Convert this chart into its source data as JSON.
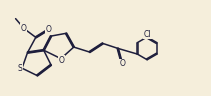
{
  "bg_color": "#f5eedb",
  "bond_color": "#1e1e3c",
  "atom_color": "#1e1e3c",
  "line_width": 1.1,
  "font_size": 5.5,
  "fig_width": 2.11,
  "fig_height": 0.96,
  "dpi": 100,
  "xlim": [
    -0.5,
    11.0
  ],
  "ylim": [
    0.8,
    5.8
  ]
}
